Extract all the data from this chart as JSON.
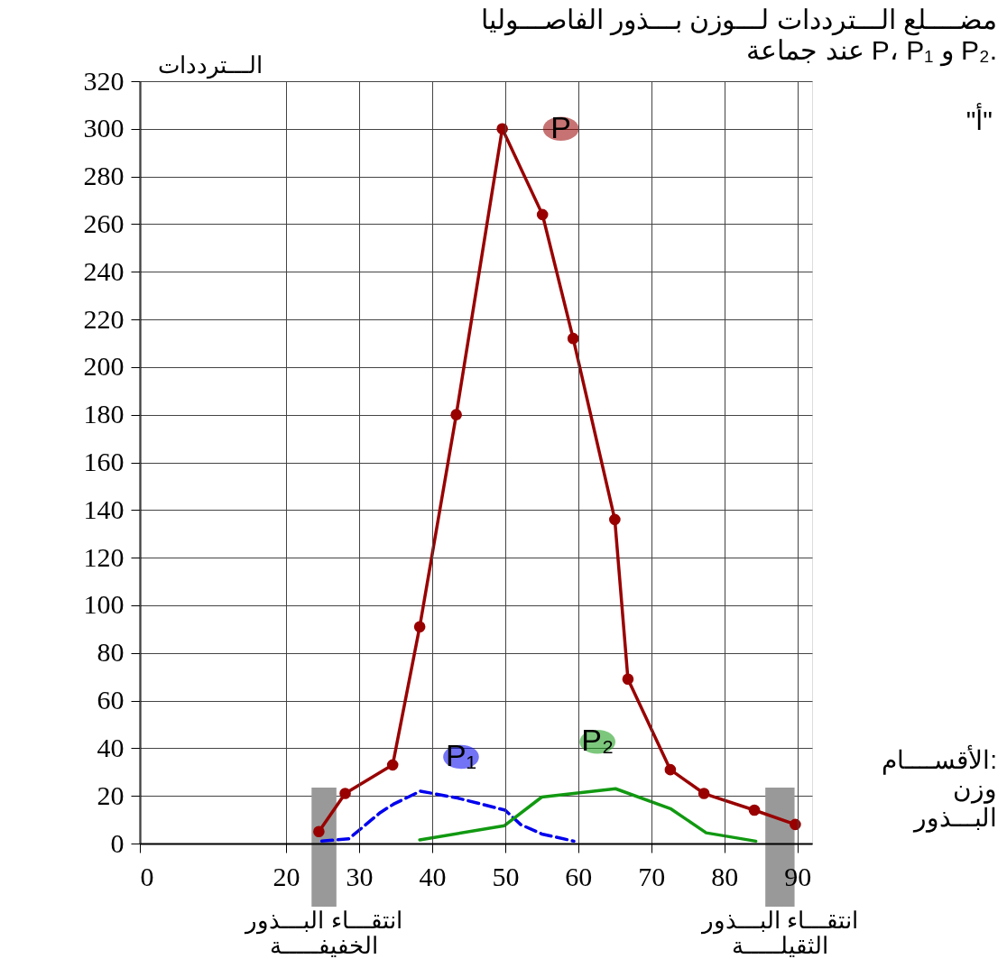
{
  "chart_data": {
    "type": "line",
    "title": "مضــــلع الـــترددات لـــوزن بـــذور الفاصـــوليا\nعند جماعة P، P₁ و P₂.",
    "xlabel": "الأقســــام:\nوزن\nالبـــذور",
    "ylabel": "الـــترددات",
    "annotations": [
      "\"أ\""
    ],
    "xlim": [
      0,
      92
    ],
    "xticks": [
      0,
      20,
      30,
      40,
      50,
      60,
      70,
      80,
      90
    ],
    "ylim": [
      0,
      320
    ],
    "yticks": [
      0,
      20,
      40,
      60,
      80,
      100,
      120,
      140,
      160,
      180,
      200,
      220,
      240,
      260,
      280,
      300,
      320
    ],
    "grid": true,
    "series": [
      {
        "name": "P",
        "color": "#990000",
        "marker": "circle",
        "line_style": "solid",
        "x": [
          24.5,
          28.1,
          34.6,
          38.3,
          43.3,
          49.6,
          55.1,
          59.3,
          65.0,
          66.8,
          72.6,
          77.2,
          84.1,
          89.7
        ],
        "values": [
          5,
          21,
          33,
          91,
          180,
          300,
          264,
          212,
          136,
          69,
          31,
          21,
          14,
          8
        ]
      },
      {
        "name": "P₁",
        "color": "#0000ee",
        "marker": "none",
        "line_style": "dashed",
        "x": [
          24.9,
          28.6,
          32.9,
          34.7,
          38.4,
          43.6,
          50.0,
          52.1,
          55.0,
          59.4
        ],
        "values": [
          1,
          2,
          13,
          16.5,
          22,
          19,
          14,
          8,
          4,
          1
        ]
      },
      {
        "name": "P₂",
        "color": "#119911",
        "marker": "none",
        "line_style": "solid",
        "x": [
          38.3,
          49.9,
          55.0,
          65.1,
          72.7,
          77.5,
          84.3
        ],
        "values": [
          1.5,
          7.5,
          19.5,
          23,
          14.5,
          4.5,
          1
        ]
      }
    ],
    "bands": [
      {
        "axis": "x",
        "from": 23.5,
        "to": 26.9,
        "color": "#999999",
        "label": "انتقـــاء البـــذور\nالخفيفـــــة"
      },
      {
        "axis": "x",
        "from": 85.6,
        "to": 89.6,
        "color": "#999999",
        "label": "انتقـــاء البـــذور\nالثقيلـــــة"
      }
    ]
  }
}
